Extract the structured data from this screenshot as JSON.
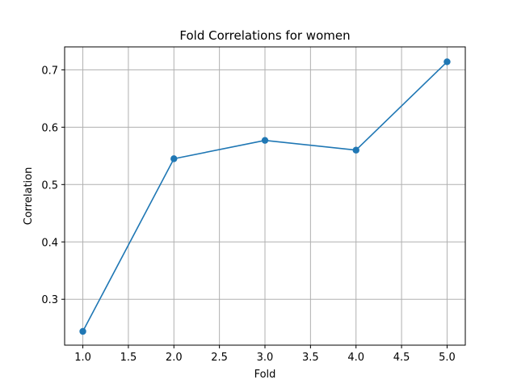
{
  "chart_data": {
    "type": "line",
    "title": "Fold Correlations for women",
    "xlabel": "Fold",
    "ylabel": "Correlation",
    "xlim": [
      0.8,
      5.2
    ],
    "ylim": [
      0.22,
      0.74
    ],
    "xticks": [
      1.0,
      1.5,
      2.0,
      2.5,
      3.0,
      3.5,
      4.0,
      4.5,
      5.0
    ],
    "xtick_labels": [
      "1.0",
      "1.5",
      "2.0",
      "2.5",
      "3.0",
      "3.5",
      "4.0",
      "4.5",
      "5.0"
    ],
    "yticks": [
      0.3,
      0.4,
      0.5,
      0.6,
      0.7
    ],
    "ytick_labels": [
      "0.3",
      "0.4",
      "0.5",
      "0.6",
      "0.7"
    ],
    "grid": true,
    "series": [
      {
        "color": "#1f77b4",
        "marker": "circle",
        "x": [
          1,
          2,
          3,
          4,
          5
        ],
        "y": [
          0.244,
          0.545,
          0.577,
          0.56,
          0.714
        ]
      }
    ]
  }
}
